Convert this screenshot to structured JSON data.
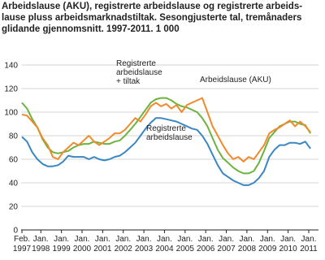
{
  "chart_data": {
    "type": "line",
    "title": [
      "Arbeidslause (AKU), registrerte arbeidslause og registrerte arbeids-",
      "lause pluss arbeidsmarknadstiltak. Sesongjusterte tal, tremånaders",
      "glidande gjennomsnitt. 1997-2011. 1 000"
    ],
    "x": [
      "1997-02",
      "1997-05",
      "1997-08",
      "1997-11",
      "1998-02",
      "1998-05",
      "1998-08",
      "1998-11",
      "1999-02",
      "1999-05",
      "1999-08",
      "1999-11",
      "2000-02",
      "2000-05",
      "2000-08",
      "2000-11",
      "2001-02",
      "2001-05",
      "2001-08",
      "2001-11",
      "2002-02",
      "2002-05",
      "2002-08",
      "2002-11",
      "2003-02",
      "2003-05",
      "2003-08",
      "2003-11",
      "2004-02",
      "2004-05",
      "2004-08",
      "2004-11",
      "2005-02",
      "2005-05",
      "2005-08",
      "2005-11",
      "2006-02",
      "2006-05",
      "2006-08",
      "2006-11",
      "2007-02",
      "2007-05",
      "2007-08",
      "2007-11",
      "2008-02",
      "2008-05",
      "2008-08",
      "2008-11",
      "2009-02",
      "2009-05",
      "2009-08",
      "2009-11",
      "2010-02",
      "2010-05",
      "2010-08",
      "2010-11",
      "2011-02"
    ],
    "series": [
      {
        "name": "Registrerte arbeidslause",
        "color": "#3a87c1",
        "values": [
          79,
          75,
          66,
          60,
          56,
          54,
          54,
          55,
          58,
          63,
          62,
          62,
          62,
          60,
          62,
          60,
          59,
          60,
          62,
          63,
          66,
          70,
          74,
          80,
          86,
          91,
          95,
          95,
          94,
          93,
          92,
          90,
          88,
          86,
          85,
          80,
          73,
          64,
          55,
          48,
          45,
          42,
          40,
          38,
          38,
          40,
          44,
          50,
          62,
          68,
          72,
          72,
          74,
          74,
          73,
          75,
          69
        ]
      },
      {
        "name": "Registrerte arbeidslause + tiltak",
        "color": "#6ab33e",
        "values": [
          108,
          103,
          94,
          87,
          77,
          70,
          66,
          65,
          66,
          67,
          70,
          72,
          73,
          73,
          75,
          74,
          73,
          73,
          75,
          76,
          80,
          85,
          90,
          96,
          102,
          108,
          111,
          112,
          112,
          110,
          107,
          105,
          104,
          102,
          100,
          95,
          88,
          78,
          68,
          61,
          57,
          53,
          50,
          48,
          48,
          50,
          57,
          67,
          78,
          83,
          88,
          90,
          92,
          92,
          90,
          89,
          82
        ]
      },
      {
        "name": "Arbeidslause (AKU)",
        "color": "#f08a2c",
        "values": [
          98,
          97,
          92,
          87,
          78,
          72,
          62,
          60,
          66,
          70,
          74,
          72,
          76,
          80,
          75,
          72,
          75,
          78,
          82,
          82,
          85,
          90,
          95,
          92,
          98,
          105,
          108,
          105,
          107,
          103,
          106,
          100,
          106,
          108,
          110,
          112,
          100,
          88,
          80,
          72,
          65,
          60,
          62,
          58,
          62,
          60,
          66,
          72,
          82,
          85,
          87,
          90,
          93,
          88,
          92,
          88,
          83
        ]
      }
    ],
    "annotations": [
      [
        "Registrerte",
        "arbeidslause",
        "+ tiltak"
      ],
      [
        "Arbeidslause (AKU)"
      ],
      [
        "Registrerte",
        "arbeidslause"
      ]
    ],
    "ylim": [
      0,
      140
    ],
    "yticks": [
      0,
      20,
      40,
      60,
      80,
      100,
      120,
      140
    ],
    "grid": true,
    "xticks": [
      {
        "value": "1997-02",
        "label": [
          "Feb.",
          "1997"
        ]
      },
      {
        "value": "1998-01",
        "label": [
          "Jan.",
          "1998"
        ]
      },
      {
        "value": "1999-01",
        "label": [
          "Jan.",
          "1999"
        ]
      },
      {
        "value": "2000-01",
        "label": [
          "Jan.",
          "2000"
        ]
      },
      {
        "value": "2001-01",
        "label": [
          "Jan.",
          "2001"
        ]
      },
      {
        "value": "2002-01",
        "label": [
          "Jan.",
          "2002"
        ]
      },
      {
        "value": "2003-01",
        "label": [
          "Jan.",
          "2003"
        ]
      },
      {
        "value": "2004-01",
        "label": [
          "Jan.",
          "2004"
        ]
      },
      {
        "value": "2005-01",
        "label": [
          "Jan.",
          "2005"
        ]
      },
      {
        "value": "2006-01",
        "label": [
          "Jan.",
          "2006"
        ]
      },
      {
        "value": "2007-01",
        "label": [
          "Jan.",
          "2007"
        ]
      },
      {
        "value": "2008-01",
        "label": [
          "Jan.",
          "2008"
        ]
      },
      {
        "value": "2009-01",
        "label": [
          "Jan.",
          "2009"
        ]
      },
      {
        "value": "2010-01",
        "label": [
          "Jan.",
          "2010"
        ]
      },
      {
        "value": "2011-01",
        "label": [
          "Jan.",
          "2011"
        ]
      }
    ]
  }
}
